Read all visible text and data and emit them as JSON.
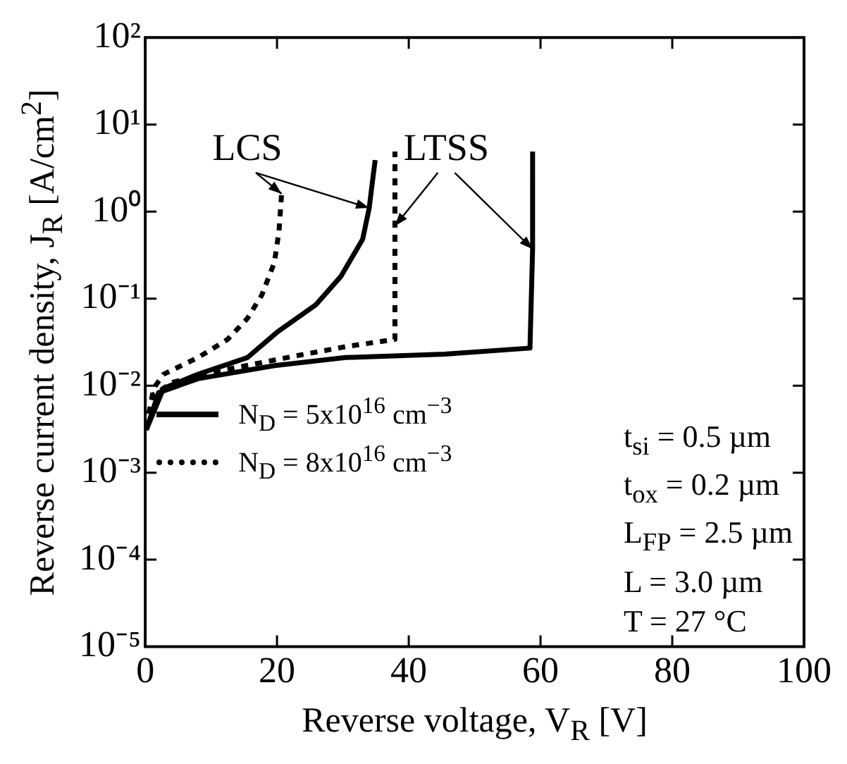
{
  "chart_data": {
    "type": "line",
    "xlabel": "Reverse voltage, V$_{R}$ [V]",
    "ylabel": "Reverse current density, J$_{R}$ [A/cm$^{2}$]",
    "xlim": [
      0,
      100
    ],
    "xticks": [
      0,
      20,
      40,
      60,
      80,
      100
    ],
    "ylim": [
      1e-05,
      100
    ],
    "yticks": [
      {
        "value": 1e-05,
        "label": "10⁻⁵"
      },
      {
        "value": 0.0001,
        "label": "10⁻⁴"
      },
      {
        "value": 0.001,
        "label": "10⁻³"
      },
      {
        "value": 0.01,
        "label": "10⁻²"
      },
      {
        "value": 0.1,
        "label": "10⁻¹"
      },
      {
        "value": 1,
        "label": "10⁰"
      },
      {
        "value": 10,
        "label": "10¹"
      },
      {
        "value": 100,
        "label": "10²"
      }
    ],
    "log": "y",
    "grid": false,
    "legend": "left",
    "marker": "none",
    "series": [
      {
        "name": "N$_{D}$ = 5x10$^{16}$ cm$^{−3}$",
        "color": "#000000",
        "line_style": "solid",
        "x": [
          0.15,
          2.77,
          8.0,
          15.5,
          20.0,
          25.9,
          29.7,
          33.0,
          34.0,
          34.3,
          34.9
        ],
        "values": [
          0.0031,
          0.0093,
          0.0135,
          0.021,
          0.041,
          0.085,
          0.18,
          0.48,
          1.1,
          1.7,
          3.9
        ]
      },
      {
        "color": "#000000",
        "line_style": "solid",
        "x": [
          0.15,
          2.02,
          8.0,
          19.6,
          30.4,
          45.4,
          58.4,
          58.8,
          58.8
        ],
        "values": [
          0.0031,
          0.0083,
          0.012,
          0.017,
          0.021,
          0.023,
          0.027,
          0.37,
          4.9
        ]
      },
      {
        "name": "N$_{D}$ = 8x10$^{16}$ cm$^{−3}$",
        "color": "#000000",
        "line_style": "dotted",
        "x": [
          0.15,
          1.27,
          2.77,
          8.0,
          12.5,
          15.5,
          17.7,
          19.6,
          20.3,
          20.7
        ],
        "values": [
          0.0033,
          0.0093,
          0.0135,
          0.021,
          0.034,
          0.059,
          0.11,
          0.26,
          0.59,
          1.6
        ]
      },
      {
        "color": "#000000",
        "line_style": "dotted",
        "x": [
          0.15,
          1.27,
          4.26,
          11.7,
          22.9,
          30.4,
          37.9,
          37.9,
          37.9,
          37.9
        ],
        "values": [
          0.0033,
          0.0079,
          0.011,
          0.015,
          0.022,
          0.028,
          0.034,
          0.11,
          0.68,
          4.9
        ]
      }
    ],
    "annotations": [
      {
        "text": "LCS",
        "x": 34.0,
        "y": 1.1
      },
      {
        "text": "LTSS",
        "x": 37.9,
        "y": 0.68
      },
      "t$_{si}$ = 0.5 µm",
      "t$_{ox}$ = 0.2 µm",
      "L$_{FP}$ = 2.5 µm",
      "L = 3.0 µm",
      "T = 27 °C"
    ]
  }
}
